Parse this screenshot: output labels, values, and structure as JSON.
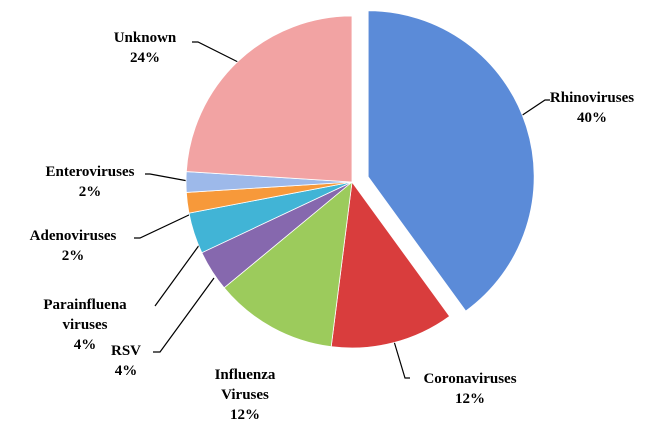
{
  "chart_data": {
    "type": "pie",
    "categories": [
      "Rhinoviruses",
      "Coronaviruses",
      "Influenza Viruses",
      "RSV",
      "Parainfluena viruses",
      "Adenoviruses",
      "Enteroviruses",
      "Unknown"
    ],
    "values": [
      40,
      12,
      12,
      4,
      4,
      2,
      2,
      24
    ],
    "value_labels": [
      "40%",
      "12%",
      "12%",
      "4%",
      "4%",
      "2%",
      "2%",
      "24%"
    ],
    "colors": [
      "#5b8bd8",
      "#d93d3d",
      "#9ccb5c",
      "#8668ae",
      "#41b4d6",
      "#f7993a",
      "#9db9ea",
      "#f2a3a3"
    ]
  }
}
